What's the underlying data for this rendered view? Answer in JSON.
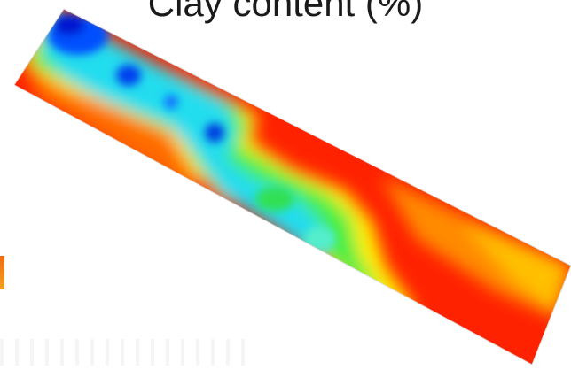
{
  "map": {
    "title": "Clay content (%)",
    "colors": {
      "high": "#ff1a00",
      "upper": "#ff6a00",
      "mid_high": "#ffb000",
      "mid": "#ffff00",
      "mid_low": "#33ff33",
      "low": "#00ffff",
      "lower": "#0090ff",
      "min": "#0010cc"
    }
  }
}
